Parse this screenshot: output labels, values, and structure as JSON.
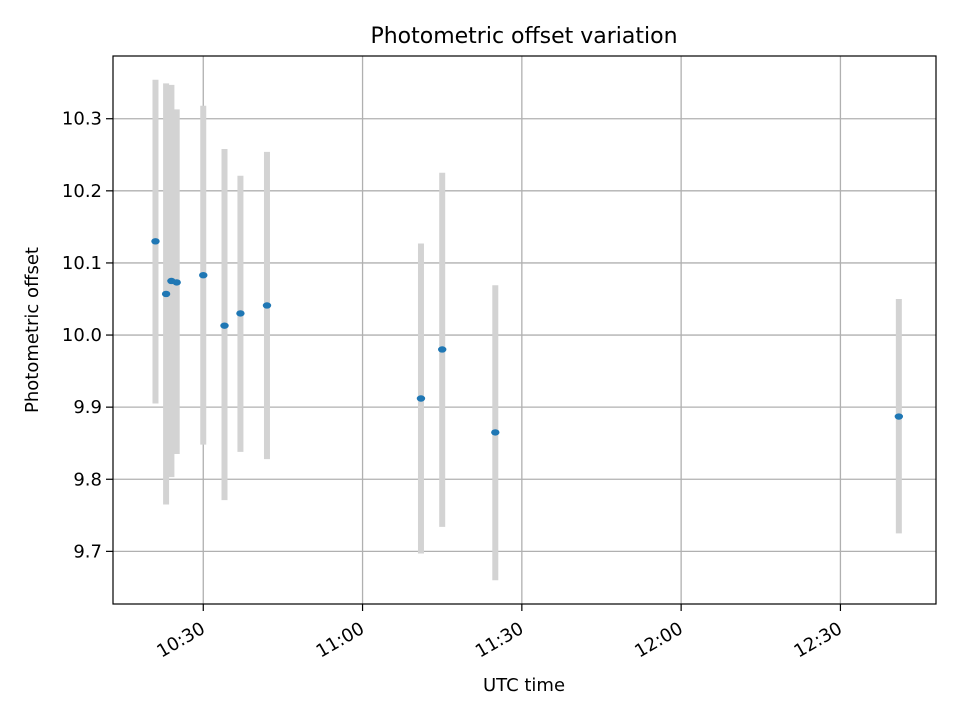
{
  "chart_data": {
    "type": "scatter",
    "title": "Photometric offset variation",
    "xlabel": "UTC time",
    "ylabel": "Photometric offset",
    "x_tick_labels": [
      "10:30",
      "11:00",
      "11:30",
      "12:00",
      "12:30"
    ],
    "y_tick_labels": [
      "9.7",
      "9.8",
      "9.9",
      "10.0",
      "10.1",
      "10.2",
      "10.3"
    ],
    "x_axis_start": "10:13",
    "x_axis_end": "12:48",
    "ylim": [
      9.627,
      10.387
    ],
    "grid": true,
    "series": [
      {
        "x": [
          "10:21",
          "10:23",
          "10:24",
          "10:25",
          "10:30",
          "10:34",
          "10:37",
          "10:42",
          "11:11",
          "11:15",
          "11:25",
          "12:41"
        ],
        "y": [
          10.13,
          10.057,
          10.075,
          10.073,
          10.083,
          10.013,
          10.03,
          10.041,
          9.912,
          9.98,
          9.865,
          9.887
        ],
        "err_low": [
          9.905,
          9.765,
          9.803,
          9.835,
          9.848,
          9.771,
          9.838,
          9.828,
          9.697,
          9.734,
          9.66,
          9.725
        ],
        "err_high": [
          10.354,
          10.349,
          10.347,
          10.313,
          10.318,
          10.258,
          10.221,
          10.254,
          10.127,
          10.225,
          10.069,
          10.05
        ]
      }
    ],
    "colors": {
      "marker": "#1f77b4",
      "errorbar": "#d3d3d3",
      "grid": "#b0b0b0",
      "axes": "#000000"
    }
  }
}
